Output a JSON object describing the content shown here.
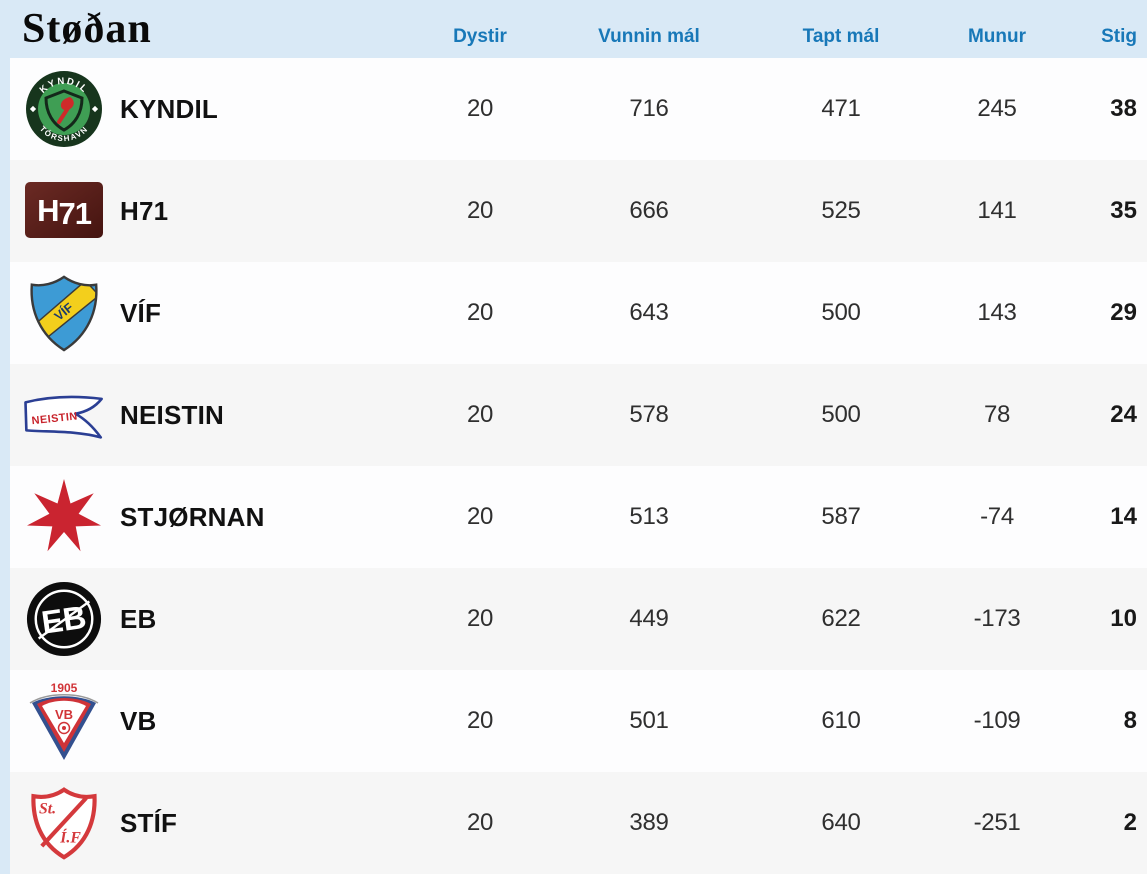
{
  "page": {
    "title": "Støðan",
    "background_color": "#d9e9f6"
  },
  "table": {
    "header_text_color": "#1878b8",
    "row_color_odd": "#fdfdfe",
    "row_color_even": "#f6f6f6",
    "columns": [
      {
        "label": "Dystir"
      },
      {
        "label": "Vunnin mál"
      },
      {
        "label": "Tapt mál"
      },
      {
        "label": "Munur"
      },
      {
        "label": "Stig"
      }
    ]
  },
  "standings": [
    {
      "team": "KYNDIL",
      "crest": "kyndil-crest-icon",
      "played": "20",
      "goals_for": "716",
      "goals_against": "471",
      "difference": "245",
      "points": "38"
    },
    {
      "team": "H71",
      "crest": "h71-crest-icon",
      "played": "20",
      "goals_for": "666",
      "goals_against": "525",
      "difference": "141",
      "points": "35"
    },
    {
      "team": "VÍF",
      "crest": "vif-crest-icon",
      "played": "20",
      "goals_for": "643",
      "goals_against": "500",
      "difference": "143",
      "points": "29"
    },
    {
      "team": "NEISTIN",
      "crest": "neistin-crest-icon",
      "played": "20",
      "goals_for": "578",
      "goals_against": "500",
      "difference": "78",
      "points": "24"
    },
    {
      "team": "STJØRNAN",
      "crest": "stjornan-crest-icon",
      "played": "20",
      "goals_for": "513",
      "goals_against": "587",
      "difference": "-74",
      "points": "14"
    },
    {
      "team": "EB",
      "crest": "eb-crest-icon",
      "played": "20",
      "goals_for": "449",
      "goals_against": "622",
      "difference": "-173",
      "points": "10"
    },
    {
      "team": "VB",
      "crest": "vb-crest-icon",
      "played": "20",
      "goals_for": "501",
      "goals_against": "610",
      "difference": "-109",
      "points": "8"
    },
    {
      "team": "STÍF",
      "crest": "stif-crest-icon",
      "played": "20",
      "goals_for": "389",
      "goals_against": "640",
      "difference": "-251",
      "points": "2"
    }
  ]
}
